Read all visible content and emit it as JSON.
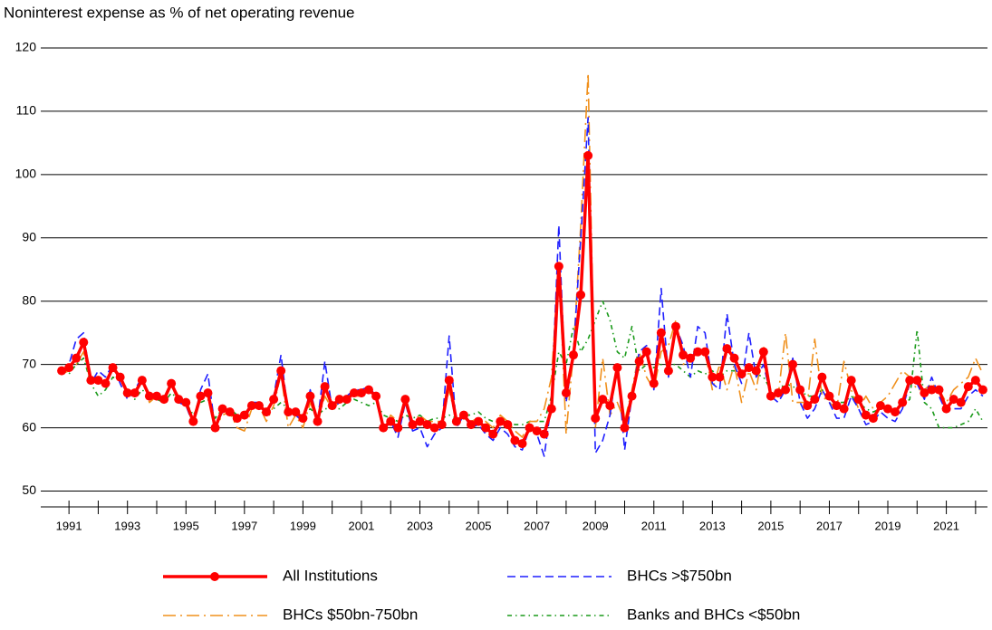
{
  "chart_data": {
    "type": "line",
    "title": "Noninterest expense as % of net operating revenue",
    "x": [
      1990.75,
      1991,
      1991.25,
      1991.5,
      1991.75,
      1992,
      1992.25,
      1992.5,
      1992.75,
      1993,
      1993.25,
      1993.5,
      1993.75,
      1994,
      1994.25,
      1994.5,
      1994.75,
      1995,
      1995.25,
      1995.5,
      1995.75,
      1996,
      1996.25,
      1996.5,
      1996.75,
      1997,
      1997.25,
      1997.5,
      1997.75,
      1998,
      1998.25,
      1998.5,
      1998.75,
      1999,
      1999.25,
      1999.5,
      1999.75,
      2000,
      2000.25,
      2000.5,
      2000.75,
      2001,
      2001.25,
      2001.5,
      2001.75,
      2002,
      2002.25,
      2002.5,
      2002.75,
      2003,
      2003.25,
      2003.5,
      2003.75,
      2004,
      2004.25,
      2004.5,
      2004.75,
      2005,
      2005.25,
      2005.5,
      2005.75,
      2006,
      2006.25,
      2006.5,
      2006.75,
      2007,
      2007.25,
      2007.5,
      2007.75,
      2008,
      2008.25,
      2008.5,
      2008.75,
      2009,
      2009.25,
      2009.5,
      2009.75,
      2010,
      2010.25,
      2010.5,
      2010.75,
      2011,
      2011.25,
      2011.5,
      2011.75,
      2012,
      2012.25,
      2012.5,
      2012.75,
      2013,
      2013.25,
      2013.5,
      2013.75,
      2014,
      2014.25,
      2014.5,
      2014.75,
      2015,
      2015.25,
      2015.5,
      2015.75,
      2016,
      2016.25,
      2016.5,
      2016.75,
      2017,
      2017.25,
      2017.5,
      2017.75,
      2018,
      2018.25,
      2018.5,
      2018.75,
      2019,
      2019.25,
      2019.5,
      2019.75,
      2020,
      2020.25,
      2020.5,
      2020.75,
      2021,
      2021.25,
      2021.5,
      2021.75,
      2022,
      2022.25
    ],
    "series": [
      {
        "name": "All Institutions",
        "color": "#ff0000",
        "style": "solid",
        "marker": "circle",
        "values": [
          69,
          69.5,
          71,
          73.5,
          67.5,
          67.5,
          67,
          69.5,
          68,
          65.5,
          65.5,
          67.5,
          65,
          65,
          64.5,
          67,
          64.5,
          64,
          61,
          65,
          65.5,
          60,
          63,
          62.5,
          61.5,
          62,
          63.5,
          63.5,
          62.5,
          64.5,
          69,
          62.5,
          62.5,
          61.5,
          65,
          61,
          66.5,
          63.5,
          64.5,
          64.5,
          65.5,
          65.5,
          66,
          65,
          60,
          61,
          60,
          64.5,
          60.5,
          61,
          60.5,
          60,
          60.5,
          67.5,
          61,
          62,
          60.5,
          61,
          60,
          59,
          61,
          60.5,
          58,
          57.5,
          60,
          59.5,
          59,
          63,
          85.5,
          65.5,
          71.5,
          81,
          103,
          61.5,
          64.5,
          63.5,
          69.5,
          60,
          65,
          70.5,
          72,
          67,
          75,
          69,
          76,
          71.5,
          71,
          72,
          72,
          68,
          68,
          72.5,
          71,
          68.5,
          69.5,
          69,
          72,
          65,
          65.5,
          66,
          70,
          66,
          63.5,
          64.5,
          68,
          65,
          63.5,
          63,
          67.5,
          64.5,
          62,
          61.5,
          63.5,
          63,
          62.5,
          64,
          67.5,
          67.5,
          65.5,
          66,
          66,
          63,
          64.5,
          64,
          66.5,
          67.5,
          66
        ]
      },
      {
        "name": "BHCs >$750bn",
        "color": "#1f1fff",
        "style": "dashed",
        "values": [
          69,
          70,
          74,
          75,
          67,
          69,
          68,
          70,
          67,
          64.5,
          66,
          68,
          64.5,
          65,
          64,
          67,
          64,
          63.5,
          60.5,
          66,
          68.5,
          60,
          62.5,
          63,
          61,
          62,
          64,
          64,
          62,
          65,
          71.5,
          62,
          62,
          61,
          66,
          61,
          70.5,
          63,
          64,
          65,
          66,
          66,
          66.5,
          65,
          59.5,
          61,
          58.5,
          64,
          59.5,
          60,
          57,
          59,
          60,
          74.5,
          60,
          62,
          60,
          60.5,
          59,
          58,
          60,
          59,
          57,
          56.5,
          60,
          59,
          55.5,
          64,
          92,
          64,
          72,
          90,
          109,
          56,
          58,
          62,
          70,
          56.5,
          65,
          72,
          73,
          66,
          82,
          68,
          76,
          73,
          68,
          76,
          75,
          67,
          66,
          78,
          70,
          67,
          75,
          68,
          70,
          65,
          64,
          66,
          71,
          64,
          61.5,
          63,
          66,
          64,
          61.5,
          61.5,
          65,
          63,
          60.5,
          61,
          62.5,
          61.5,
          61,
          63,
          67,
          67,
          64.5,
          68,
          65,
          62.5,
          63,
          63,
          65,
          66,
          65
        ]
      },
      {
        "name": "BHCs $50bn-750bn",
        "color": "#f0901c",
        "style": "dashdot",
        "values": [
          68.5,
          69,
          70,
          72,
          67,
          68,
          67,
          70,
          68,
          66,
          65,
          68,
          64,
          65,
          64,
          67,
          65,
          63.5,
          61.5,
          65.5,
          65,
          60,
          62,
          62.5,
          60,
          59.5,
          63,
          63.5,
          61,
          63.5,
          68.5,
          60,
          62,
          60,
          64,
          61,
          65,
          63,
          64,
          65,
          65,
          65,
          66,
          64.5,
          59.5,
          62,
          61,
          64,
          61,
          62,
          61,
          61,
          61,
          66,
          61,
          61.5,
          61,
          61.5,
          61,
          60,
          62,
          61,
          59.5,
          58.5,
          61,
          61,
          63,
          68,
          86,
          59,
          72,
          92,
          116,
          60,
          71,
          62,
          64,
          61,
          66,
          72,
          68,
          66,
          72,
          73,
          77,
          70,
          71,
          72,
          72,
          66,
          70,
          66,
          70,
          64,
          69,
          66,
          73,
          65,
          65,
          75,
          64,
          64,
          64,
          74,
          65,
          64,
          63,
          70.5,
          66,
          63,
          65,
          63,
          64,
          65,
          67,
          69,
          68,
          66,
          66,
          67,
          66,
          64,
          66,
          67,
          68,
          71,
          68.5
        ]
      },
      {
        "name": "Banks and BHCs <$50bn",
        "color": "#1a9a1a",
        "style": "dotdash",
        "values": [
          69,
          68.5,
          70,
          71,
          67,
          65,
          66,
          68,
          67.5,
          66,
          64.5,
          66,
          65,
          64.5,
          64,
          65.5,
          64.5,
          64,
          62,
          64,
          64.5,
          61.5,
          63,
          63,
          62,
          62,
          63,
          63.5,
          62.5,
          63,
          64,
          63,
          62,
          62,
          63,
          62,
          63,
          63,
          63,
          64,
          64.5,
          64,
          63.5,
          64,
          62,
          61.5,
          61,
          62,
          61.5,
          62,
          61,
          61.5,
          61.5,
          62,
          61.5,
          62,
          62,
          62.5,
          61.5,
          61,
          61,
          61,
          60.5,
          60.5,
          61,
          61,
          61,
          65,
          72,
          70,
          76,
          72,
          74,
          77,
          80,
          77,
          72,
          71,
          76,
          69,
          70,
          69.5,
          70,
          70,
          70,
          69,
          68,
          69,
          68.5,
          69,
          68,
          69,
          69,
          69,
          69,
          68.5,
          68,
          66,
          66,
          67,
          66.5,
          66,
          65,
          65,
          66,
          65,
          64,
          64,
          65,
          64,
          63,
          62.5,
          63,
          63,
          63,
          63.5,
          64.5,
          75.5,
          64,
          63,
          60,
          60,
          60,
          60.5,
          61,
          63,
          61
        ]
      }
    ],
    "xlim": [
      1990.5,
      2022.5
    ],
    "xticks": [
      1991,
      1993,
      1995,
      1997,
      1999,
      2001,
      2003,
      2005,
      2007,
      2009,
      2011,
      2013,
      2015,
      2017,
      2019,
      2021
    ],
    "xminorticks": [
      1992,
      1994,
      1996,
      1998,
      2000,
      2002,
      2004,
      2006,
      2008,
      2010,
      2012,
      2014,
      2016,
      2018,
      2020,
      2022
    ],
    "ylim": [
      47.5,
      122
    ],
    "yticks": [
      50,
      60,
      70,
      80,
      90,
      100,
      110,
      120
    ],
    "grid": true
  }
}
